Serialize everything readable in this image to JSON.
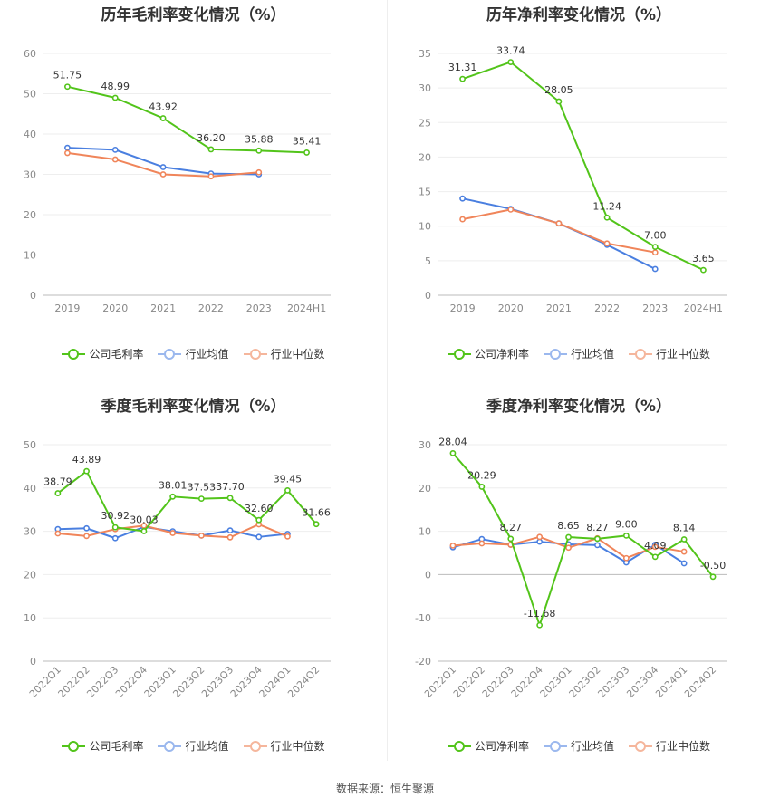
{
  "colors": {
    "company": "#52c41a",
    "industry_avg": "#4a7fe0",
    "industry_median": "#f0855a"
  },
  "source": "数据来源：恒生聚源",
  "chart_data": [
    {
      "type": "line",
      "title": "历年毛利率变化情况（%）",
      "categories": [
        "2019",
        "2020",
        "2021",
        "2022",
        "2023",
        "2024H1"
      ],
      "ylim": [
        0,
        60
      ],
      "yticks": [
        0,
        10,
        20,
        30,
        40,
        50,
        60
      ],
      "grid": true,
      "legend_position": "bottom",
      "series": [
        {
          "name": "公司毛利率",
          "color": "#52c41a",
          "labels": true,
          "values": [
            51.75,
            48.99,
            43.92,
            36.2,
            35.88,
            35.41
          ]
        },
        {
          "name": "行业均值",
          "color": "#4a7fe0",
          "labels": false,
          "values": [
            36.6,
            36.1,
            31.8,
            30.2,
            30.0,
            null
          ]
        },
        {
          "name": "行业中位数",
          "color": "#f0855a",
          "labels": false,
          "values": [
            35.3,
            33.7,
            30.0,
            29.5,
            30.5,
            null
          ]
        }
      ]
    },
    {
      "type": "line",
      "title": "历年净利率变化情况（%）",
      "categories": [
        "2019",
        "2020",
        "2021",
        "2022",
        "2023",
        "2024H1"
      ],
      "ylim": [
        0,
        35
      ],
      "yticks": [
        0,
        5,
        10,
        15,
        20,
        25,
        30,
        35
      ],
      "grid": true,
      "legend_position": "bottom",
      "series": [
        {
          "name": "公司净利率",
          "color": "#52c41a",
          "labels": true,
          "values": [
            31.31,
            33.74,
            28.05,
            11.24,
            7.0,
            3.65
          ]
        },
        {
          "name": "行业均值",
          "color": "#4a7fe0",
          "labels": false,
          "values": [
            14.0,
            12.5,
            10.4,
            7.3,
            3.8,
            null
          ]
        },
        {
          "name": "行业中位数",
          "color": "#f0855a",
          "labels": false,
          "values": [
            11.0,
            12.4,
            10.4,
            7.5,
            6.2,
            null
          ]
        }
      ]
    },
    {
      "type": "line",
      "title": "季度毛利率变化情况（%）",
      "categories": [
        "2022Q1",
        "2022Q2",
        "2022Q3",
        "2022Q4",
        "2023Q1",
        "2023Q2",
        "2023Q3",
        "2023Q4",
        "2024Q1",
        "2024Q2"
      ],
      "ylim": [
        0,
        50
      ],
      "yticks": [
        0,
        10,
        20,
        30,
        40,
        50
      ],
      "grid": true,
      "rotate_xticks": true,
      "legend_position": "bottom",
      "series": [
        {
          "name": "公司毛利率",
          "color": "#52c41a",
          "labels": true,
          "values": [
            38.79,
            43.89,
            30.92,
            30.03,
            38.01,
            37.53,
            37.7,
            32.6,
            39.45,
            31.66
          ]
        },
        {
          "name": "行业均值",
          "color": "#4a7fe0",
          "labels": false,
          "values": [
            30.5,
            30.7,
            28.4,
            31.0,
            30.0,
            29.0,
            30.2,
            28.7,
            29.4,
            null
          ]
        },
        {
          "name": "行业中位数",
          "color": "#f0855a",
          "labels": false,
          "values": [
            29.5,
            28.9,
            30.5,
            31.3,
            29.6,
            29.0,
            28.6,
            31.6,
            28.8,
            null
          ]
        }
      ]
    },
    {
      "type": "line",
      "title": "季度净利率变化情况（%）",
      "categories": [
        "2022Q1",
        "2022Q2",
        "2022Q3",
        "2022Q4",
        "2023Q1",
        "2023Q2",
        "2023Q3",
        "2023Q4",
        "2024Q1",
        "2024Q2"
      ],
      "ylim": [
        -20,
        30
      ],
      "yticks": [
        -20,
        -10,
        0,
        10,
        20,
        30
      ],
      "grid": true,
      "rotate_xticks": true,
      "legend_position": "bottom",
      "series": [
        {
          "name": "公司净利率",
          "color": "#52c41a",
          "labels": true,
          "values": [
            28.04,
            20.29,
            8.27,
            -11.68,
            8.65,
            8.27,
            9.0,
            4.09,
            8.14,
            -0.5
          ]
        },
        {
          "name": "行业均值",
          "color": "#4a7fe0",
          "labels": false,
          "values": [
            6.3,
            8.2,
            6.9,
            7.6,
            7.0,
            6.8,
            2.8,
            6.9,
            2.6,
            null
          ]
        },
        {
          "name": "行业中位数",
          "color": "#f0855a",
          "labels": false,
          "values": [
            6.7,
            7.2,
            6.9,
            8.7,
            6.2,
            8.4,
            3.8,
            6.4,
            5.3,
            null
          ]
        }
      ]
    }
  ]
}
